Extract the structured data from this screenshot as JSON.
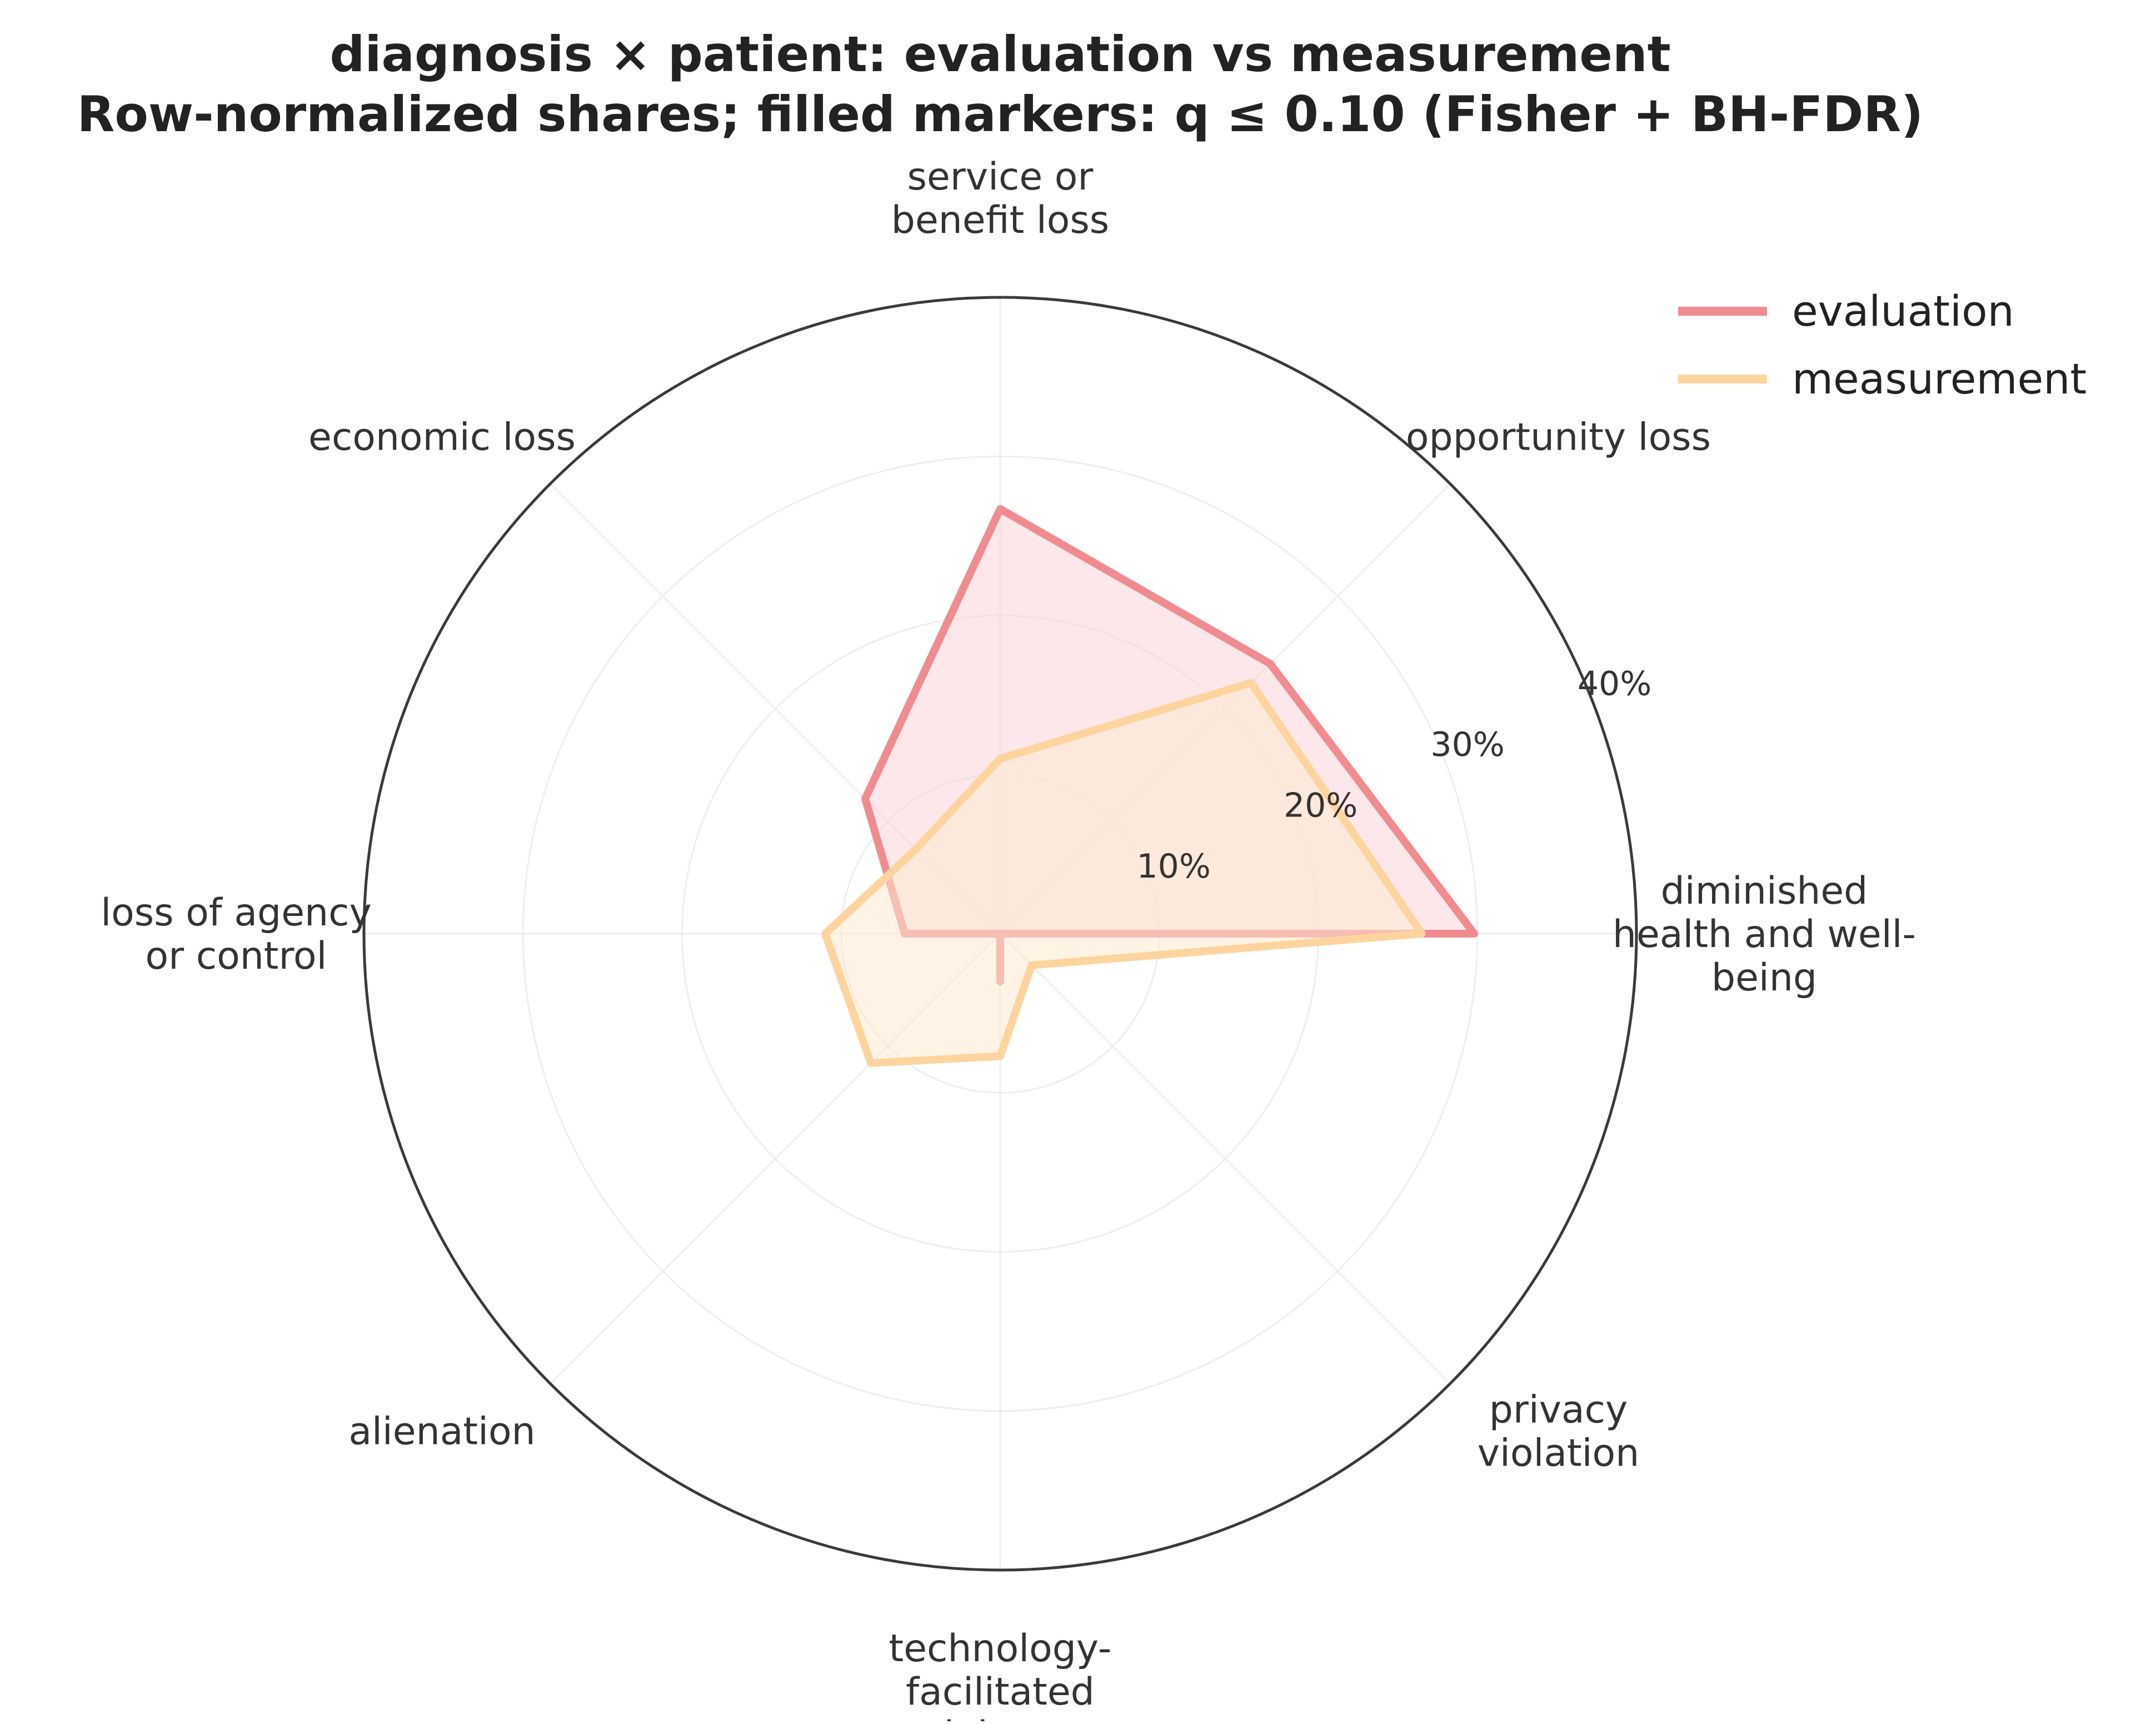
{
  "chart_data": {
    "type": "radar",
    "title_lines": [
      "diagnosis × patient: evaluation vs measurement",
      "Row-normalized shares; filled markers: q ≤ 0.10 (Fisher + BH-FDR)"
    ],
    "categories": [
      [
        "diminished",
        "health and well-",
        "being"
      ],
      [
        "opportunity loss"
      ],
      [
        "service or",
        "benefit loss"
      ],
      [
        "economic loss"
      ],
      [
        "loss of agency",
        "or control"
      ],
      [
        "alienation"
      ],
      [
        "technology-",
        "facilitated",
        "violence"
      ],
      [
        "privacy",
        "violation"
      ]
    ],
    "radial_ticks": [
      10,
      20,
      30,
      40
    ],
    "radial_tick_labels": [
      "10%",
      "20%",
      "30%",
      "40%"
    ],
    "rlim": [
      0,
      40
    ],
    "series": [
      {
        "name": "evaluation",
        "color": "#f08b90",
        "fill": "#fbd3d8",
        "values": [
          29.8,
          24.0,
          26.7,
          12.0,
          6.0,
          0.0,
          3.0,
          0.0
        ]
      },
      {
        "name": "measurement",
        "color": "#fdd49e",
        "fill": "#fde9d0",
        "values": [
          26.5,
          22.3,
          11.0,
          7.5,
          11.0,
          11.5,
          7.7,
          2.8
        ]
      }
    ],
    "legend_position": "top-right",
    "grid": true
  }
}
